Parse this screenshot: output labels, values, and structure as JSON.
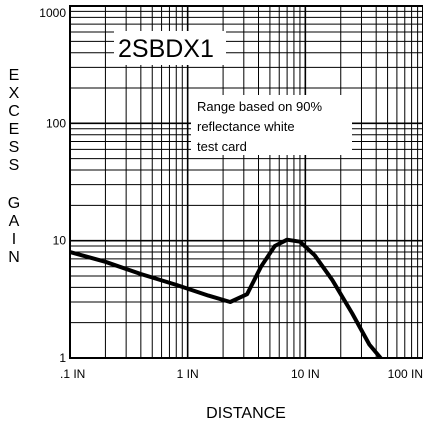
{
  "chart_data": {
    "type": "line",
    "title": "2SBDX1",
    "xlabel": "DISTANCE",
    "ylabel": "EXCESS GAIN",
    "x_scale": "log",
    "y_scale": "log",
    "xlim": [
      0.1,
      100
    ],
    "ylim": [
      1,
      1000
    ],
    "x_ticks": [
      0.1,
      1,
      10,
      100
    ],
    "x_tick_labels": [
      ".1 IN",
      "1 IN",
      "10 IN",
      "100 IN"
    ],
    "y_ticks": [
      1,
      10,
      100,
      1000
    ],
    "y_tick_labels": [
      "1",
      "10",
      "100",
      "1000"
    ],
    "grid": true,
    "annotation": [
      "Range based on 90%",
      "reflectance white",
      "test card"
    ],
    "series": [
      {
        "color": "#000000",
        "x": [
          0.1,
          0.2,
          0.4,
          0.8,
          1.5,
          2.3,
          3.2,
          4.2,
          5.5,
          7.0,
          9.0,
          12.0,
          17.0,
          25.0,
          35.0,
          50.0
        ],
        "y": [
          8.0,
          6.6,
          5.2,
          4.2,
          3.4,
          3.0,
          3.5,
          6.0,
          9.0,
          10.2,
          9.8,
          7.5,
          4.6,
          2.4,
          1.3,
          0.85
        ]
      }
    ]
  }
}
